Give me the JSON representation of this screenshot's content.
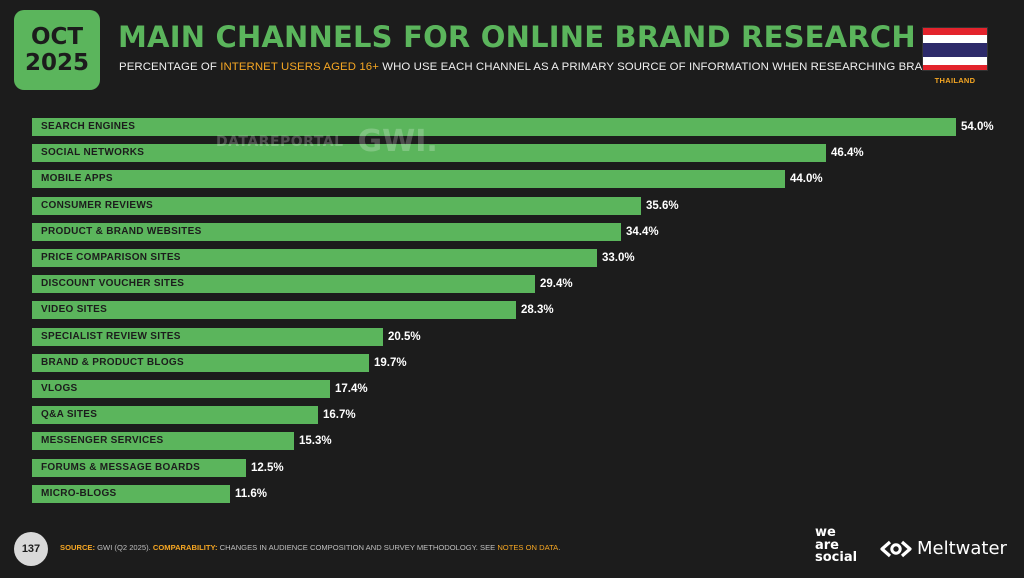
{
  "header": {
    "date_month": "OCT",
    "date_year": "2025",
    "title": "MAIN CHANNELS FOR ONLINE BRAND RESEARCH",
    "subtitle_pre": "PERCENTAGE OF ",
    "subtitle_highlight": "INTERNET USERS AGED 16+",
    "subtitle_post": " WHO USE EACH CHANNEL AS A PRIMARY SOURCE OF INFORMATION WHEN RESEARCHING BRANDS",
    "country": "THAILAND"
  },
  "watermark": {
    "datareportal": "DATAREPORTAL",
    "gwi": "GWI."
  },
  "chart_data": {
    "type": "bar",
    "orientation": "horizontal",
    "categories": [
      "SEARCH ENGINES",
      "SOCIAL NETWORKS",
      "MOBILE APPS",
      "CONSUMER REVIEWS",
      "PRODUCT & BRAND WEBSITES",
      "PRICE COMPARISON SITES",
      "DISCOUNT VOUCHER SITES",
      "VIDEO SITES",
      "SPECIALIST REVIEW SITES",
      "BRAND & PRODUCT BLOGS",
      "VLOGS",
      "Q&A SITES",
      "MESSENGER SERVICES",
      "FORUMS & MESSAGE BOARDS",
      "MICRO-BLOGS"
    ],
    "values": [
      54.0,
      46.4,
      44.0,
      35.6,
      34.4,
      33.0,
      29.4,
      28.3,
      20.5,
      19.7,
      17.4,
      16.7,
      15.3,
      12.5,
      11.6
    ],
    "value_labels": [
      "54.0%",
      "46.4%",
      "44.0%",
      "35.6%",
      "34.4%",
      "33.0%",
      "29.4%",
      "28.3%",
      "20.5%",
      "19.7%",
      "17.4%",
      "16.7%",
      "15.3%",
      "12.5%",
      "11.6%"
    ],
    "bar_color": "#5bb55c",
    "xlim": [
      0,
      54.0
    ],
    "grid": false,
    "legend": "none"
  },
  "footer": {
    "page_number": "137",
    "source_key": "SOURCE:",
    "source_text": " GWI (Q2 2025). ",
    "comparability_key": "COMPARABILITY:",
    "comparability_text": " CHANGES IN AUDIENCE COMPOSITION AND SURVEY METHODOLOGY. SEE ",
    "notes_link": "NOTES ON DATA",
    "notes_end": ".",
    "brand_we": "we",
    "brand_are": "are",
    "brand_social": "social",
    "brand_meltwater": "Meltwater"
  },
  "colors": {
    "background": "#1c1c1c",
    "accent_green": "#5bb55c",
    "highlight_orange": "#f5a623"
  }
}
